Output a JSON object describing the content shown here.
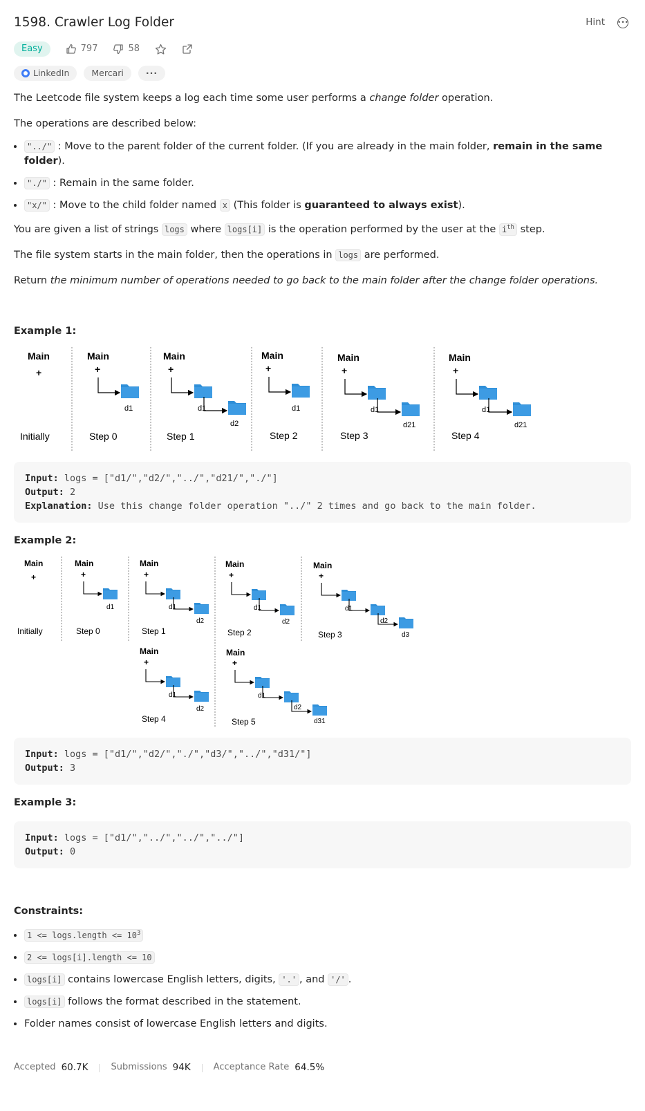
{
  "title": "1598. Crawler Log Folder",
  "hint_label": "Hint",
  "difficulty": "Easy",
  "likes": "797",
  "dislikes": "58",
  "companies": [
    "LinkedIn",
    "Mercari"
  ],
  "more_tags": "···",
  "description": {
    "intro_pre": "The Leetcode file system keeps a log each time some user performs a ",
    "intro_em": "change folder",
    "intro_post": " operation.",
    "ops_intro": "The operations are described below:",
    "op1_code": "\"../\"",
    "op1_text": " : Move to the parent folder of the current folder. (If you are already in the main folder, ",
    "op1_bold": "remain in the same folder",
    "op1_end": ").",
    "op2_code": "\"./\"",
    "op2_text": " : Remain in the same folder.",
    "op3_code": "\"x/\"",
    "op3_text": " : Move to the child folder named ",
    "op3_x": "x",
    "op3_text2": " (This folder is ",
    "op3_bold": "guaranteed to always exist",
    "op3_end": ").",
    "given_pre": "You are given a list of strings ",
    "given_code1": "logs",
    "given_mid": " where ",
    "given_code2": "logs[i]",
    "given_mid2": " is the operation performed by the user at the ",
    "given_code3": "i",
    "given_sup": "th",
    "given_end": " step.",
    "start_pre": "The file system starts in the main folder, then the operations in ",
    "start_code": "logs",
    "start_end": " are performed.",
    "return_pre": "Return ",
    "return_em": "the minimum number of operations needed to go back to the main folder after the change folder operations."
  },
  "examples": [
    {
      "title": "Example 1:",
      "input_label": "Input:",
      "input": " logs = [\"d1/\",\"d2/\",\"../\",\"d21/\",\"./\"]",
      "output_label": "Output:",
      "output": " 2",
      "expl_label": "Explanation:",
      "explanation": " Use this change folder operation \"../\" 2 times and go back to the main folder."
    },
    {
      "title": "Example 2:",
      "input_label": "Input:",
      "input": " logs = [\"d1/\",\"d2/\",\"./\",\"d3/\",\"../\",\"d31/\"]",
      "output_label": "Output:",
      "output": " 3"
    },
    {
      "title": "Example 3:",
      "input_label": "Input:",
      "input": " logs = [\"d1/\",\"../\",\"../\",\"../\"]",
      "output_label": "Output:",
      "output": " 0"
    }
  ],
  "figure": {
    "main": "Main",
    "plus": "+",
    "initially": "Initially",
    "steps": [
      "Step 0",
      "Step 1",
      "Step 2",
      "Step 3",
      "Step 4",
      "Step 5"
    ],
    "folders": [
      "d1",
      "d2",
      "d21",
      "d3",
      "d31"
    ]
  },
  "constraints": {
    "title": "Constraints:",
    "c1_code": "1 <= logs.length <= 10",
    "c1_sup": "3",
    "c2_code": "2 <= logs[i].length <= 10",
    "c3_code": "logs[i]",
    "c3_text": " contains lowercase English letters, digits, ",
    "c3_dot": "'.'",
    "c3_and": ", and ",
    "c3_slash": "'/'",
    "c3_end": ".",
    "c4_code": "logs[i]",
    "c4_text": " follows the format described in the statement.",
    "c5_text": "Folder names consist of lowercase English letters and digits."
  },
  "stats": {
    "accepted_label": "Accepted",
    "accepted": "60.7K",
    "submissions_label": "Submissions",
    "submissions": "94K",
    "rate_label": "Acceptance Rate",
    "rate": "64.5%"
  },
  "colors": {
    "folder": "#2f8fd8",
    "easy": "#00af9b",
    "easy_bg": "#e0f4ef"
  }
}
